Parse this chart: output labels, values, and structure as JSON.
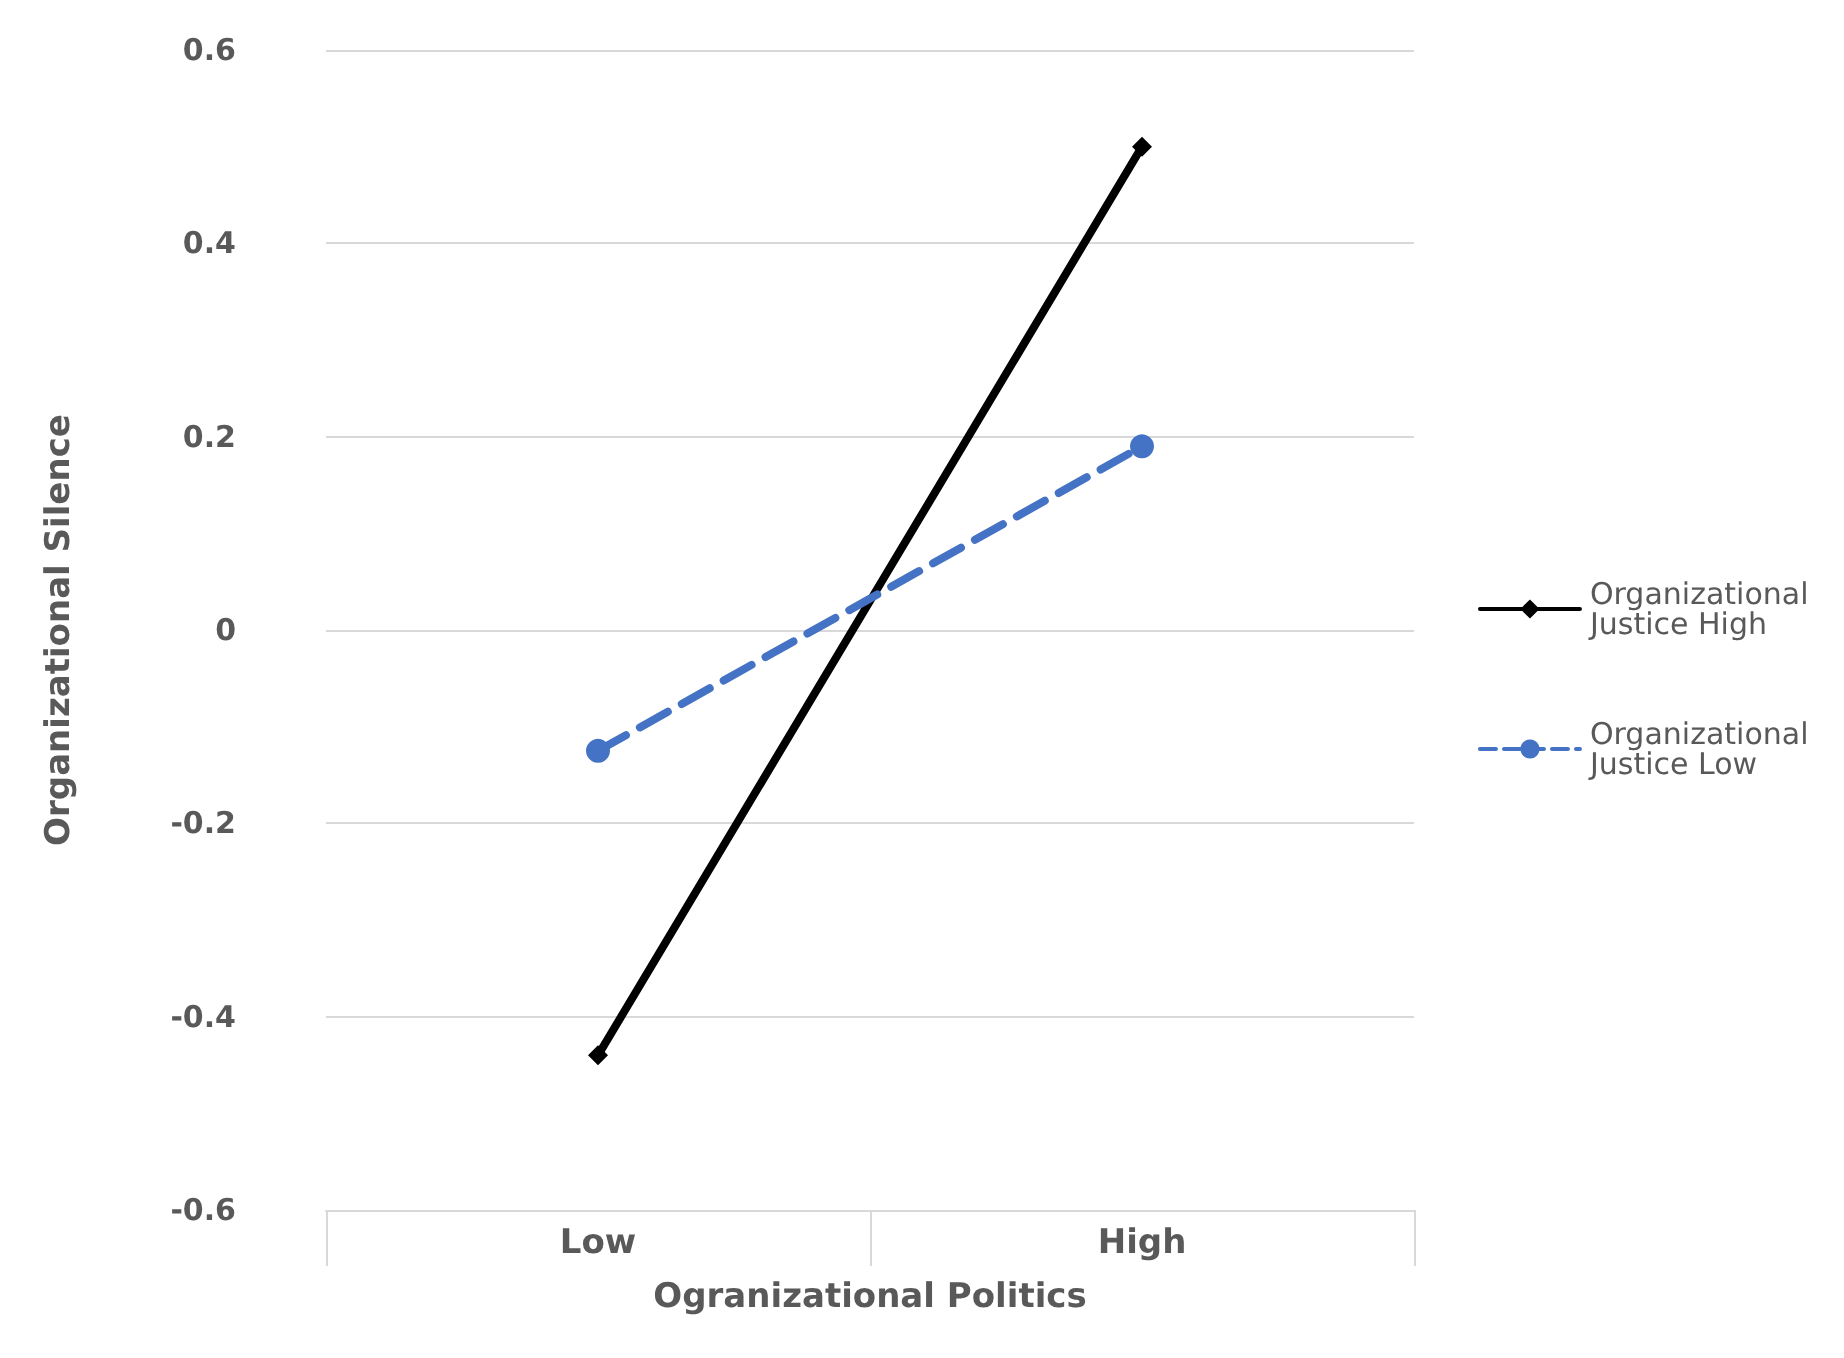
{
  "chart_data": {
    "type": "line",
    "xlabel": "Ogranizational Politics",
    "ylabel": "Organizational Silence",
    "categories": [
      "Low",
      "High"
    ],
    "series": [
      {
        "name": "Organizational Justice High",
        "color": "#000000",
        "values": [
          -0.44,
          0.5
        ],
        "marker": "diamond",
        "line_style": "solid"
      },
      {
        "name": "Organizational Justice Low",
        "color": "#4472c4",
        "values": [
          -0.125,
          0.19
        ],
        "marker": "circle",
        "line_style": "dashed"
      }
    ],
    "ylim": [
      -0.6,
      0.6
    ],
    "yticks": [
      -0.6,
      -0.4,
      -0.2,
      0,
      0.2,
      0.4,
      0.6
    ],
    "grid": "y",
    "legend": "right"
  }
}
